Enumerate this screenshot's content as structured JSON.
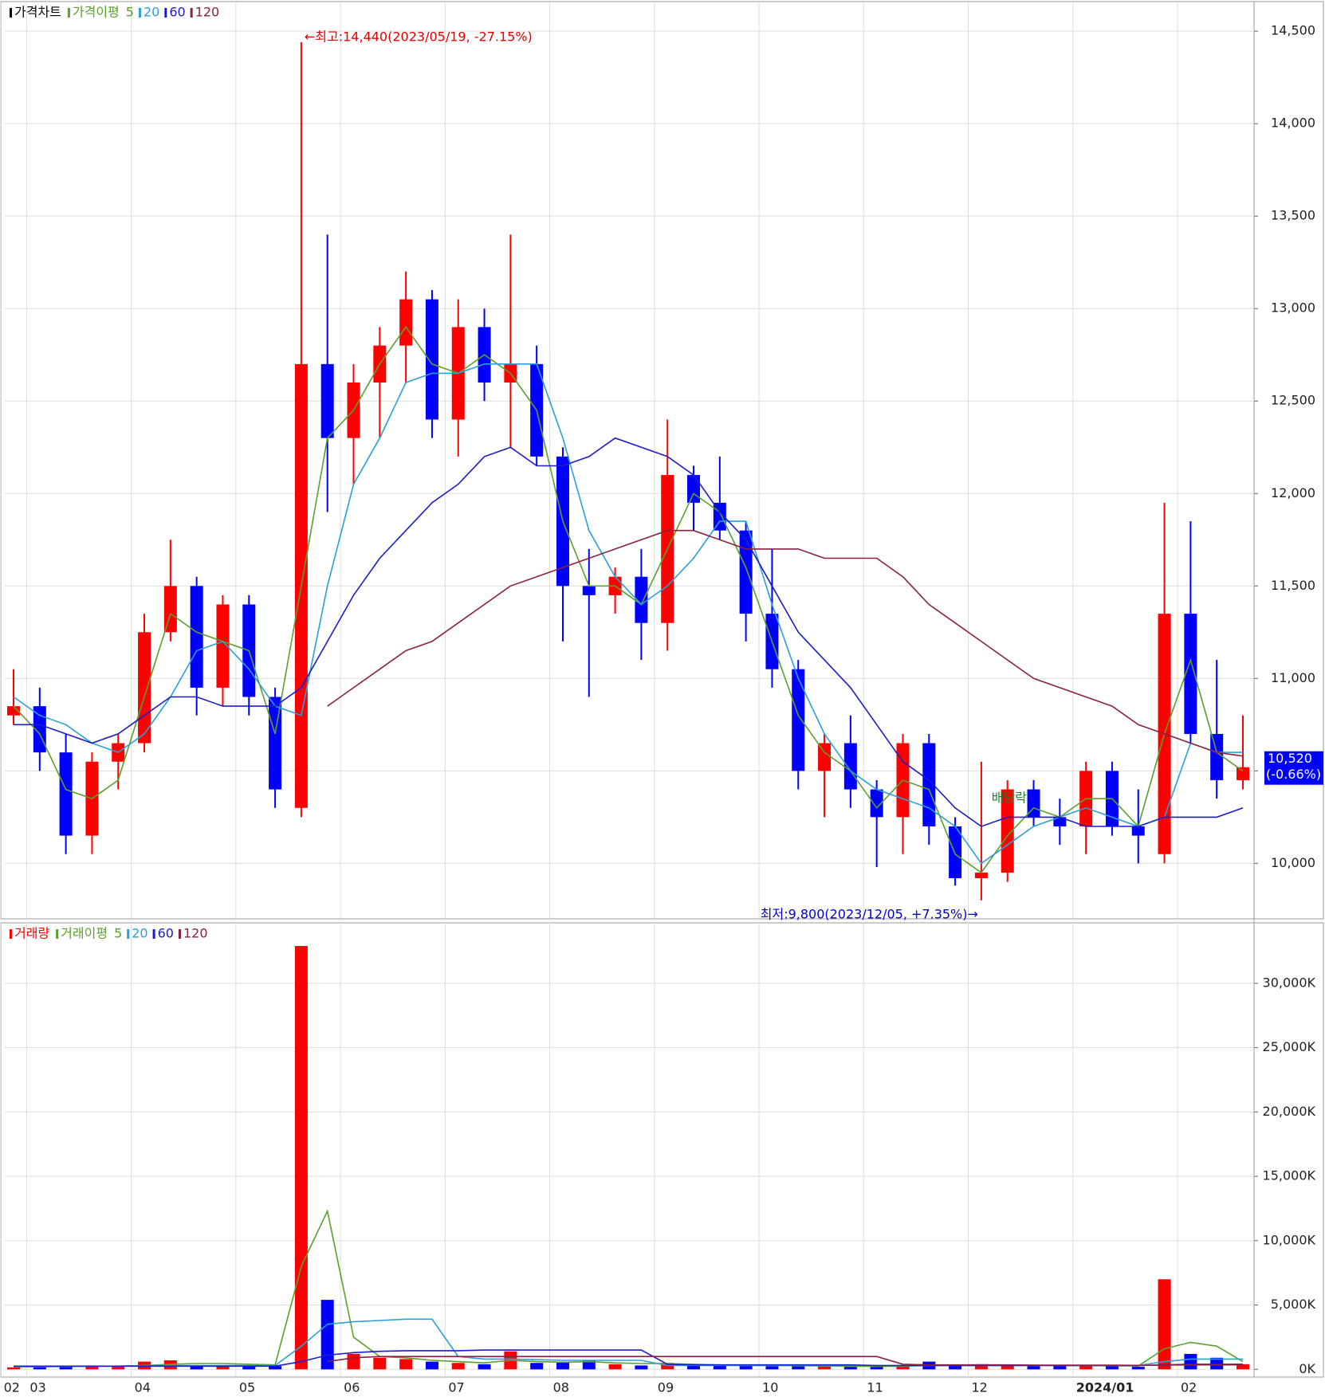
{
  "chart_data": [
    {
      "type": "candlestick",
      "legend_title": "가격차트",
      "ma_label": "가격이평",
      "up_color": "#ff0000",
      "down_color": "#0000ff",
      "categories": [
        "02",
        "03",
        null,
        null,
        null,
        "04",
        null,
        null,
        null,
        "05",
        null,
        null,
        null,
        "06",
        null,
        null,
        null,
        "07",
        null,
        null,
        null,
        "08",
        null,
        null,
        null,
        "09",
        null,
        null,
        null,
        "10",
        null,
        null,
        null,
        "11",
        null,
        null,
        null,
        "12",
        null,
        null,
        null,
        "2024/01",
        null,
        null,
        null,
        "02",
        null,
        null
      ],
      "open": [
        10800,
        10850,
        10600,
        10150,
        10550,
        10650,
        11250,
        11500,
        10950,
        11400,
        10900,
        10300,
        12700,
        12300,
        12600,
        12800,
        13050,
        12400,
        12900,
        12600,
        12700,
        12200,
        11500,
        11450,
        11550,
        11300,
        12100,
        11950,
        11800,
        11350,
        11050,
        10500,
        10650,
        10400,
        10250,
        10650,
        10200,
        9920,
        9950,
        10400,
        10250,
        10200,
        10500,
        10200,
        10050,
        11350,
        10700,
        10450
      ],
      "high": [
        11050,
        10950,
        10700,
        10600,
        10700,
        11350,
        11750,
        11550,
        11450,
        11450,
        10950,
        14440,
        13400,
        12700,
        12900,
        13200,
        13100,
        13050,
        13000,
        13400,
        12800,
        12250,
        11700,
        11600,
        11700,
        12400,
        12150,
        12200,
        11850,
        11700,
        11100,
        10700,
        10800,
        10450,
        10700,
        10700,
        10250,
        10550,
        10450,
        10450,
        10350,
        10550,
        10550,
        10400,
        11950,
        11850,
        11100,
        10800
      ],
      "low": [
        10750,
        10500,
        10050,
        10050,
        10400,
        10600,
        11200,
        10800,
        10850,
        10800,
        10300,
        10250,
        11900,
        12050,
        12300,
        12600,
        12300,
        12200,
        12500,
        12250,
        12150,
        11200,
        10900,
        11350,
        11100,
        11150,
        11800,
        11750,
        11200,
        10950,
        10400,
        10250,
        10300,
        9980,
        10050,
        10100,
        9880,
        9800,
        9900,
        10200,
        10100,
        10050,
        10150,
        10000,
        10000,
        10650,
        10350,
        10400
      ],
      "close": [
        10850,
        10600,
        10150,
        10550,
        10650,
        11250,
        11500,
        10950,
        11400,
        10900,
        10400,
        12700,
        12300,
        12600,
        12800,
        13050,
        12400,
        12900,
        12600,
        12700,
        12200,
        11500,
        11450,
        11550,
        11300,
        12100,
        11950,
        11800,
        11350,
        11050,
        10500,
        10650,
        10400,
        10250,
        10650,
        10200,
        9920,
        9950,
        10400,
        10250,
        10200,
        10500,
        10200,
        10150,
        11350,
        10700,
        10450,
        10520
      ],
      "series": [
        {
          "name": "5",
          "color": "#5aa02c",
          "values": [
            10850,
            10700,
            10400,
            10350,
            10450,
            10900,
            11350,
            11250,
            11200,
            11150,
            10700,
            11500,
            12300,
            12450,
            12700,
            12900,
            12700,
            12650,
            12750,
            12650,
            12450,
            11850,
            11500,
            11500,
            11400,
            11700,
            12000,
            11900,
            11600,
            11200,
            10800,
            10600,
            10500,
            10300,
            10450,
            10400,
            10050,
            9950,
            10150,
            10300,
            10250,
            10350,
            10350,
            10200,
            10700,
            11100,
            10600,
            10500
          ]
        },
        {
          "name": "20",
          "color": "#2a9fd8",
          "values": [
            10900,
            10800,
            10750,
            10650,
            10600,
            10700,
            10900,
            11150,
            11200,
            11050,
            10850,
            10800,
            11500,
            12050,
            12300,
            12600,
            12650,
            12650,
            12700,
            12700,
            12700,
            12300,
            11800,
            11550,
            11400,
            11500,
            11650,
            11850,
            11850,
            11400,
            11000,
            10700,
            10500,
            10400,
            10350,
            10300,
            10200,
            10000,
            10100,
            10200,
            10250,
            10300,
            10250,
            10200,
            10250,
            10650,
            10600,
            10600
          ]
        },
        {
          "name": "60",
          "color": "#1c1cc8",
          "values": [
            10750,
            10750,
            10700,
            10650,
            10700,
            10800,
            10900,
            10900,
            10850,
            10850,
            10850,
            10950,
            11200,
            11450,
            11650,
            11800,
            11950,
            12050,
            12200,
            12250,
            12150,
            12150,
            12200,
            12300,
            12250,
            12200,
            12100,
            11900,
            11750,
            11500,
            11250,
            11100,
            10950,
            10750,
            10550,
            10450,
            10300,
            10200,
            10250,
            10250,
            10250,
            10200,
            10200,
            10200,
            10250,
            10250,
            10250,
            10300
          ]
        },
        {
          "name": "120",
          "color": "#8b2040",
          "values": [
            null,
            null,
            null,
            null,
            null,
            null,
            null,
            null,
            null,
            null,
            null,
            null,
            10850,
            10950,
            11050,
            11150,
            11200,
            11300,
            11400,
            11500,
            11550,
            11600,
            11650,
            11700,
            11750,
            11800,
            11800,
            11750,
            11700,
            11700,
            11700,
            11650,
            11650,
            11650,
            11550,
            11400,
            11300,
            11200,
            11100,
            11000,
            10950,
            10900,
            10850,
            10750,
            10700,
            10650,
            10600,
            10580
          ]
        }
      ],
      "ylim": [
        9700,
        14660
      ],
      "yticks": [
        {
          "value": 10000,
          "label": "10,000"
        },
        {
          "value": 10500,
          "label": "10,500"
        },
        {
          "value": 11000,
          "label": "11,000"
        },
        {
          "value": 11500,
          "label": "11,500"
        },
        {
          "value": 12000,
          "label": "12,000"
        },
        {
          "value": 12500,
          "label": "12,500"
        },
        {
          "value": 13000,
          "label": "13,000"
        },
        {
          "value": 13500,
          "label": "13,500"
        },
        {
          "value": 14000,
          "label": "14,000"
        },
        {
          "value": 14500,
          "label": "14,500"
        }
      ],
      "high_annotation": "←최고:14,440(2023/05/19, -27.15%)",
      "low_annotation": "최저:9,800(2023/12/05, +7.35%)→",
      "event_annotation": "배당락",
      "current_label": "10,520",
      "current_change": "(-0.66%)",
      "grid": true
    },
    {
      "type": "bar",
      "legend_title": "거래량",
      "ma_label": "거래이평",
      "up_color": "#ff0000",
      "down_color": "#0000ff",
      "values": [
        150,
        200,
        250,
        300,
        200,
        600,
        700,
        300,
        250,
        200,
        250,
        32900,
        5400,
        1200,
        900,
        800,
        600,
        500,
        400,
        1400,
        500,
        600,
        700,
        400,
        300,
        500,
        350,
        300,
        300,
        250,
        300,
        250,
        200,
        200,
        250,
        600,
        300,
        400,
        350,
        250,
        300,
        300,
        250,
        200,
        7000,
        1200,
        900,
        400
      ],
      "series": [
        {
          "name": "5",
          "color": "#5aa02c",
          "values": [
            200,
            200,
            220,
            250,
            250,
            300,
            400,
            450,
            450,
            400,
            350,
            8000,
            12300,
            2500,
            1000,
            900,
            700,
            600,
            500,
            700,
            600,
            550,
            600,
            500,
            450,
            450,
            400,
            350,
            300,
            300,
            280,
            260,
            240,
            230,
            240,
            300,
            320,
            350,
            340,
            330,
            300,
            290,
            280,
            260,
            1600,
            2100,
            1800,
            600
          ]
        },
        {
          "name": "20",
          "color": "#2a9fd8",
          "values": [
            250,
            250,
            250,
            250,
            250,
            300,
            300,
            300,
            300,
            300,
            300,
            1800,
            3500,
            3700,
            3800,
            3900,
            3900,
            1000,
            800,
            800,
            750,
            700,
            700,
            700,
            700,
            300,
            300,
            300,
            300,
            300,
            300,
            300,
            300,
            300,
            300,
            300,
            300,
            300,
            300,
            300,
            300,
            300,
            300,
            300,
            600,
            800,
            800,
            800
          ]
        },
        {
          "name": "60",
          "color": "#1c1cc8",
          "values": [
            250,
            250,
            250,
            250,
            250,
            250,
            250,
            250,
            250,
            250,
            250,
            600,
            1100,
            1300,
            1400,
            1450,
            1450,
            1450,
            1500,
            1500,
            1500,
            1500,
            1500,
            1500,
            1500,
            400,
            350,
            350,
            350,
            350,
            350,
            350,
            350,
            300,
            300,
            300,
            300,
            300,
            300,
            300,
            300,
            300,
            300,
            300,
            350,
            400,
            400,
            400
          ]
        },
        {
          "name": "120",
          "color": "#8b2040",
          "values": [
            null,
            null,
            null,
            null,
            null,
            null,
            null,
            null,
            null,
            null,
            null,
            null,
            600,
            900,
            1000,
            1000,
            1000,
            1000,
            1000,
            1000,
            1000,
            1000,
            1000,
            1000,
            1000,
            1000,
            1000,
            1000,
            1000,
            1000,
            1000,
            1000,
            1000,
            1000,
            400,
            350,
            350,
            350,
            350,
            330,
            330,
            320,
            320,
            310,
            330,
            350,
            350,
            350
          ]
        }
      ],
      "ylim": [
        -600,
        34700
      ],
      "yticks": [
        {
          "value": 0,
          "label": "0K"
        },
        {
          "value": 5000,
          "label": "5,000K"
        },
        {
          "value": 10000,
          "label": "10,000K"
        },
        {
          "value": 15000,
          "label": "15,000K"
        },
        {
          "value": 20000,
          "label": "20,000K"
        },
        {
          "value": 25000,
          "label": "25,000K"
        },
        {
          "value": 30000,
          "label": "30,000K"
        }
      ],
      "grid": true
    }
  ]
}
